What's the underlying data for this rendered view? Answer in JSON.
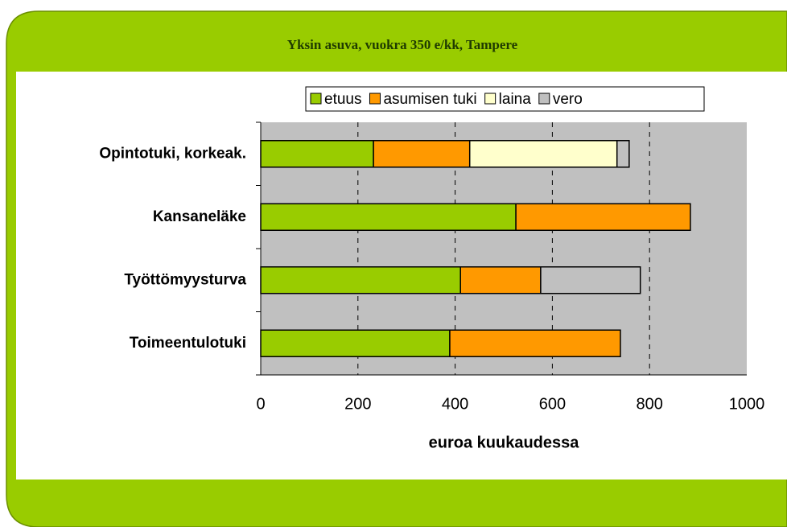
{
  "chart_data": {
    "type": "stacked_barh",
    "title": "Yksin asuva, vuokra 350 e/kk, Tampere",
    "xlabel": "euroa kuukaudessa",
    "categories": [
      "Opintotuki, korkeak.",
      "Kansaneläke",
      "Työttömyysturva",
      "Toimeentulotuki"
    ],
    "series": [
      {
        "name": "etuus",
        "color": "#99cc00",
        "values": [
          232,
          525,
          411,
          389
        ]
      },
      {
        "name": "asumisen tuki",
        "color": "#ff9900",
        "values": [
          198,
          359,
          165,
          351
        ]
      },
      {
        "name": "laina",
        "color": "#ffffcc",
        "values": [
          303,
          null,
          null,
          null
        ]
      },
      {
        "name": "vero",
        "color": "#c0c0c0",
        "values": [
          25,
          null,
          205,
          null
        ]
      }
    ],
    "xlim": [
      0,
      1000
    ],
    "xticks": [
      0,
      200,
      400,
      600,
      800,
      1000
    ],
    "grid": true,
    "legend": "top"
  }
}
